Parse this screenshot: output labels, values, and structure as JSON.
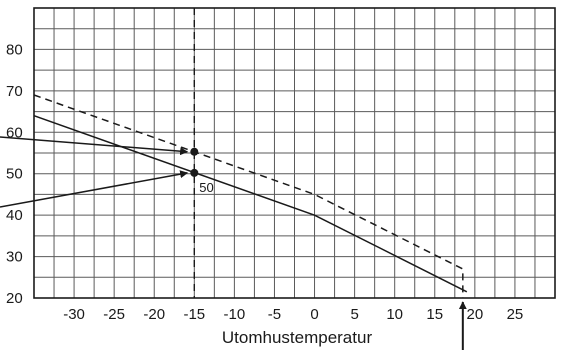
{
  "chart_data": {
    "type": "line",
    "title": "",
    "xlabel": "Utomhustemperatur",
    "ylabel": "",
    "xlim": [
      -35,
      30
    ],
    "ylim": [
      20,
      90
    ],
    "x_ticks": [
      -30,
      -25,
      -20,
      -15,
      -10,
      -5,
      0,
      5,
      10,
      15,
      20,
      25
    ],
    "y_ticks": [
      20,
      30,
      40,
      50,
      60,
      70,
      80
    ],
    "x_tick_labels": [
      "-30",
      "-25",
      "-20",
      "-15",
      "-10",
      "-5",
      "0",
      "5",
      "10",
      "15",
      "20",
      "25"
    ],
    "y_tick_labels": [
      "20",
      "30",
      "40",
      "50",
      "60",
      "70",
      "80"
    ],
    "grid": true,
    "legend": "none",
    "series": [
      {
        "style": "solid",
        "x": [
          -35,
          0,
          19
        ],
        "y": [
          64,
          40,
          21.5
        ]
      },
      {
        "style": "dashed",
        "x": [
          -35,
          0,
          18.5,
          18.5
        ],
        "y": [
          69,
          45,
          27,
          20
        ]
      }
    ],
    "reference_line": {
      "x": -15,
      "style": "dashed"
    },
    "points": [
      {
        "x": -15,
        "y": 55.3
      },
      {
        "x": -15,
        "y": 50.2
      }
    ],
    "annotations": [
      {
        "text": "50",
        "x": -15,
        "y": 50.2
      }
    ],
    "colors": {
      "line": "#1a1a1a",
      "grid": "#5a5a5a",
      "background": "#ffffff"
    }
  }
}
